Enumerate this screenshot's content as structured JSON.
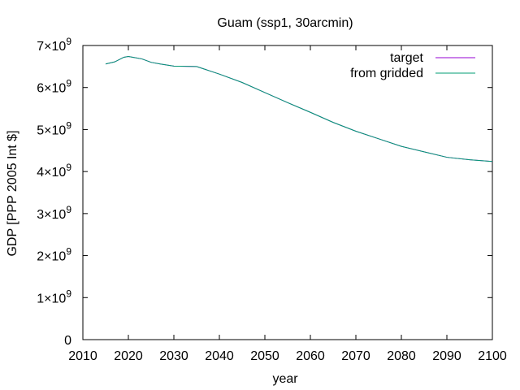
{
  "chart_data": {
    "type": "line",
    "title": "Guam (ssp1, 30arcmin)",
    "xlabel": "year",
    "ylabel": "GDP [PPP 2005 Int $]",
    "xlim": [
      2010,
      2100
    ],
    "ylim": [
      0,
      7000000000
    ],
    "x_ticks": [
      2010,
      2020,
      2030,
      2040,
      2050,
      2060,
      2070,
      2080,
      2090,
      2100
    ],
    "y_ticks": [
      0,
      1000000000,
      2000000000,
      3000000000,
      4000000000,
      5000000000,
      6000000000,
      7000000000
    ],
    "y_tick_labels": [
      {
        "mantissa": "0",
        "exp": ""
      },
      {
        "mantissa": "1×10",
        "exp": "9"
      },
      {
        "mantissa": "2×10",
        "exp": "9"
      },
      {
        "mantissa": "3×10",
        "exp": "9"
      },
      {
        "mantissa": "4×10",
        "exp": "9"
      },
      {
        "mantissa": "5×10",
        "exp": "9"
      },
      {
        "mantissa": "6×10",
        "exp": "9"
      },
      {
        "mantissa": "7×10",
        "exp": "9"
      }
    ],
    "grid": false,
    "legend_position": "top-right",
    "series": [
      {
        "name": "target",
        "color": "#9400d3",
        "x": [
          2015,
          2017,
          2019,
          2020,
          2021,
          2023,
          2025,
          2027,
          2030,
          2035,
          2040,
          2045,
          2050,
          2055,
          2060,
          2065,
          2070,
          2075,
          2080,
          2085,
          2090,
          2095,
          2100
        ],
        "y": [
          6560000000,
          6610000000,
          6720000000,
          6740000000,
          6720000000,
          6680000000,
          6600000000,
          6560000000,
          6510000000,
          6500000000,
          6320000000,
          6120000000,
          5880000000,
          5640000000,
          5410000000,
          5170000000,
          4960000000,
          4780000000,
          4600000000,
          4470000000,
          4340000000,
          4280000000,
          4240000000
        ]
      },
      {
        "name": "from gridded",
        "color": "#009e73",
        "x": [
          2015,
          2017,
          2019,
          2020,
          2021,
          2023,
          2025,
          2027,
          2030,
          2035,
          2040,
          2045,
          2050,
          2055,
          2060,
          2065,
          2070,
          2075,
          2080,
          2085,
          2090,
          2095,
          2100
        ],
        "y": [
          6560000000,
          6610000000,
          6720000000,
          6740000000,
          6720000000,
          6680000000,
          6600000000,
          6560000000,
          6510000000,
          6500000000,
          6320000000,
          6120000000,
          5880000000,
          5640000000,
          5410000000,
          5170000000,
          4960000000,
          4780000000,
          4600000000,
          4470000000,
          4340000000,
          4280000000,
          4240000000
        ]
      }
    ]
  }
}
